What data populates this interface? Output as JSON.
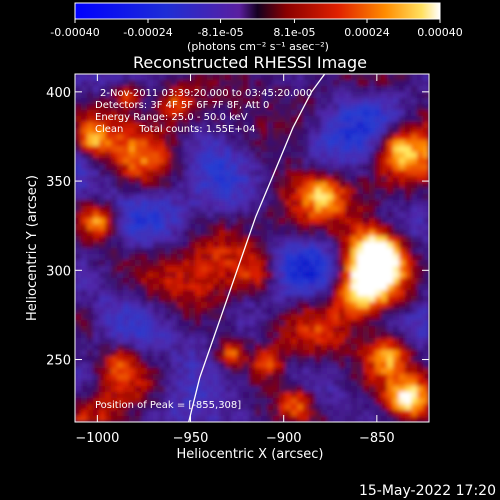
{
  "colorbar": {
    "tick_labels": [
      "-0.00040",
      "-0.00024",
      "-8.1e-05",
      "8.1e-05",
      "0.00024",
      "0.00040"
    ],
    "tick_values": [
      -0.0004,
      -0.00024,
      -8.1e-05,
      8.1e-05,
      0.00024,
      0.0004
    ],
    "unit_label": "(photons cm⁻² s⁻¹ asec⁻²)",
    "range": [
      -0.0004,
      0.0004
    ]
  },
  "chart_data": {
    "type": "heatmap",
    "title": "Reconstructed RHESSI Image",
    "xlabel": "Heliocentric X (arcsec)",
    "ylabel": "Heliocentric Y (arcsec)",
    "xlim": [
      -1012,
      -822
    ],
    "ylim": [
      215,
      410
    ],
    "x_ticks": [
      -1000,
      -950,
      -900,
      -850
    ],
    "x_tick_labels": [
      "−1000",
      "−950",
      "−900",
      "−850"
    ],
    "y_ticks": [
      250,
      300,
      350,
      400
    ],
    "y_tick_labels": [
      "250",
      "300",
      "350",
      "400"
    ],
    "limb_curve": {
      "x": [
        -951,
        -945,
        -935,
        -925,
        -915,
        -905,
        -895,
        -885,
        -878
      ],
      "y": [
        215,
        240,
        270,
        300,
        330,
        355,
        380,
        400,
        410
      ]
    },
    "peak": {
      "x": -855,
      "y": 308
    },
    "annotations": {
      "time_range": "2-Nov-2011 03:39:20.000 to 03:45:20.000",
      "detectors": "Detectors: 3F 4F 5F 6F 7F 8F, Att 0",
      "energy": "Energy Range: 25.0 - 50.0 keV",
      "clean": "Clean     Total counts: 1.55E+04",
      "peak_text": "Position of Peak = [-855,308]"
    }
  },
  "footer": {
    "date": "15-May-2022 17:20"
  }
}
